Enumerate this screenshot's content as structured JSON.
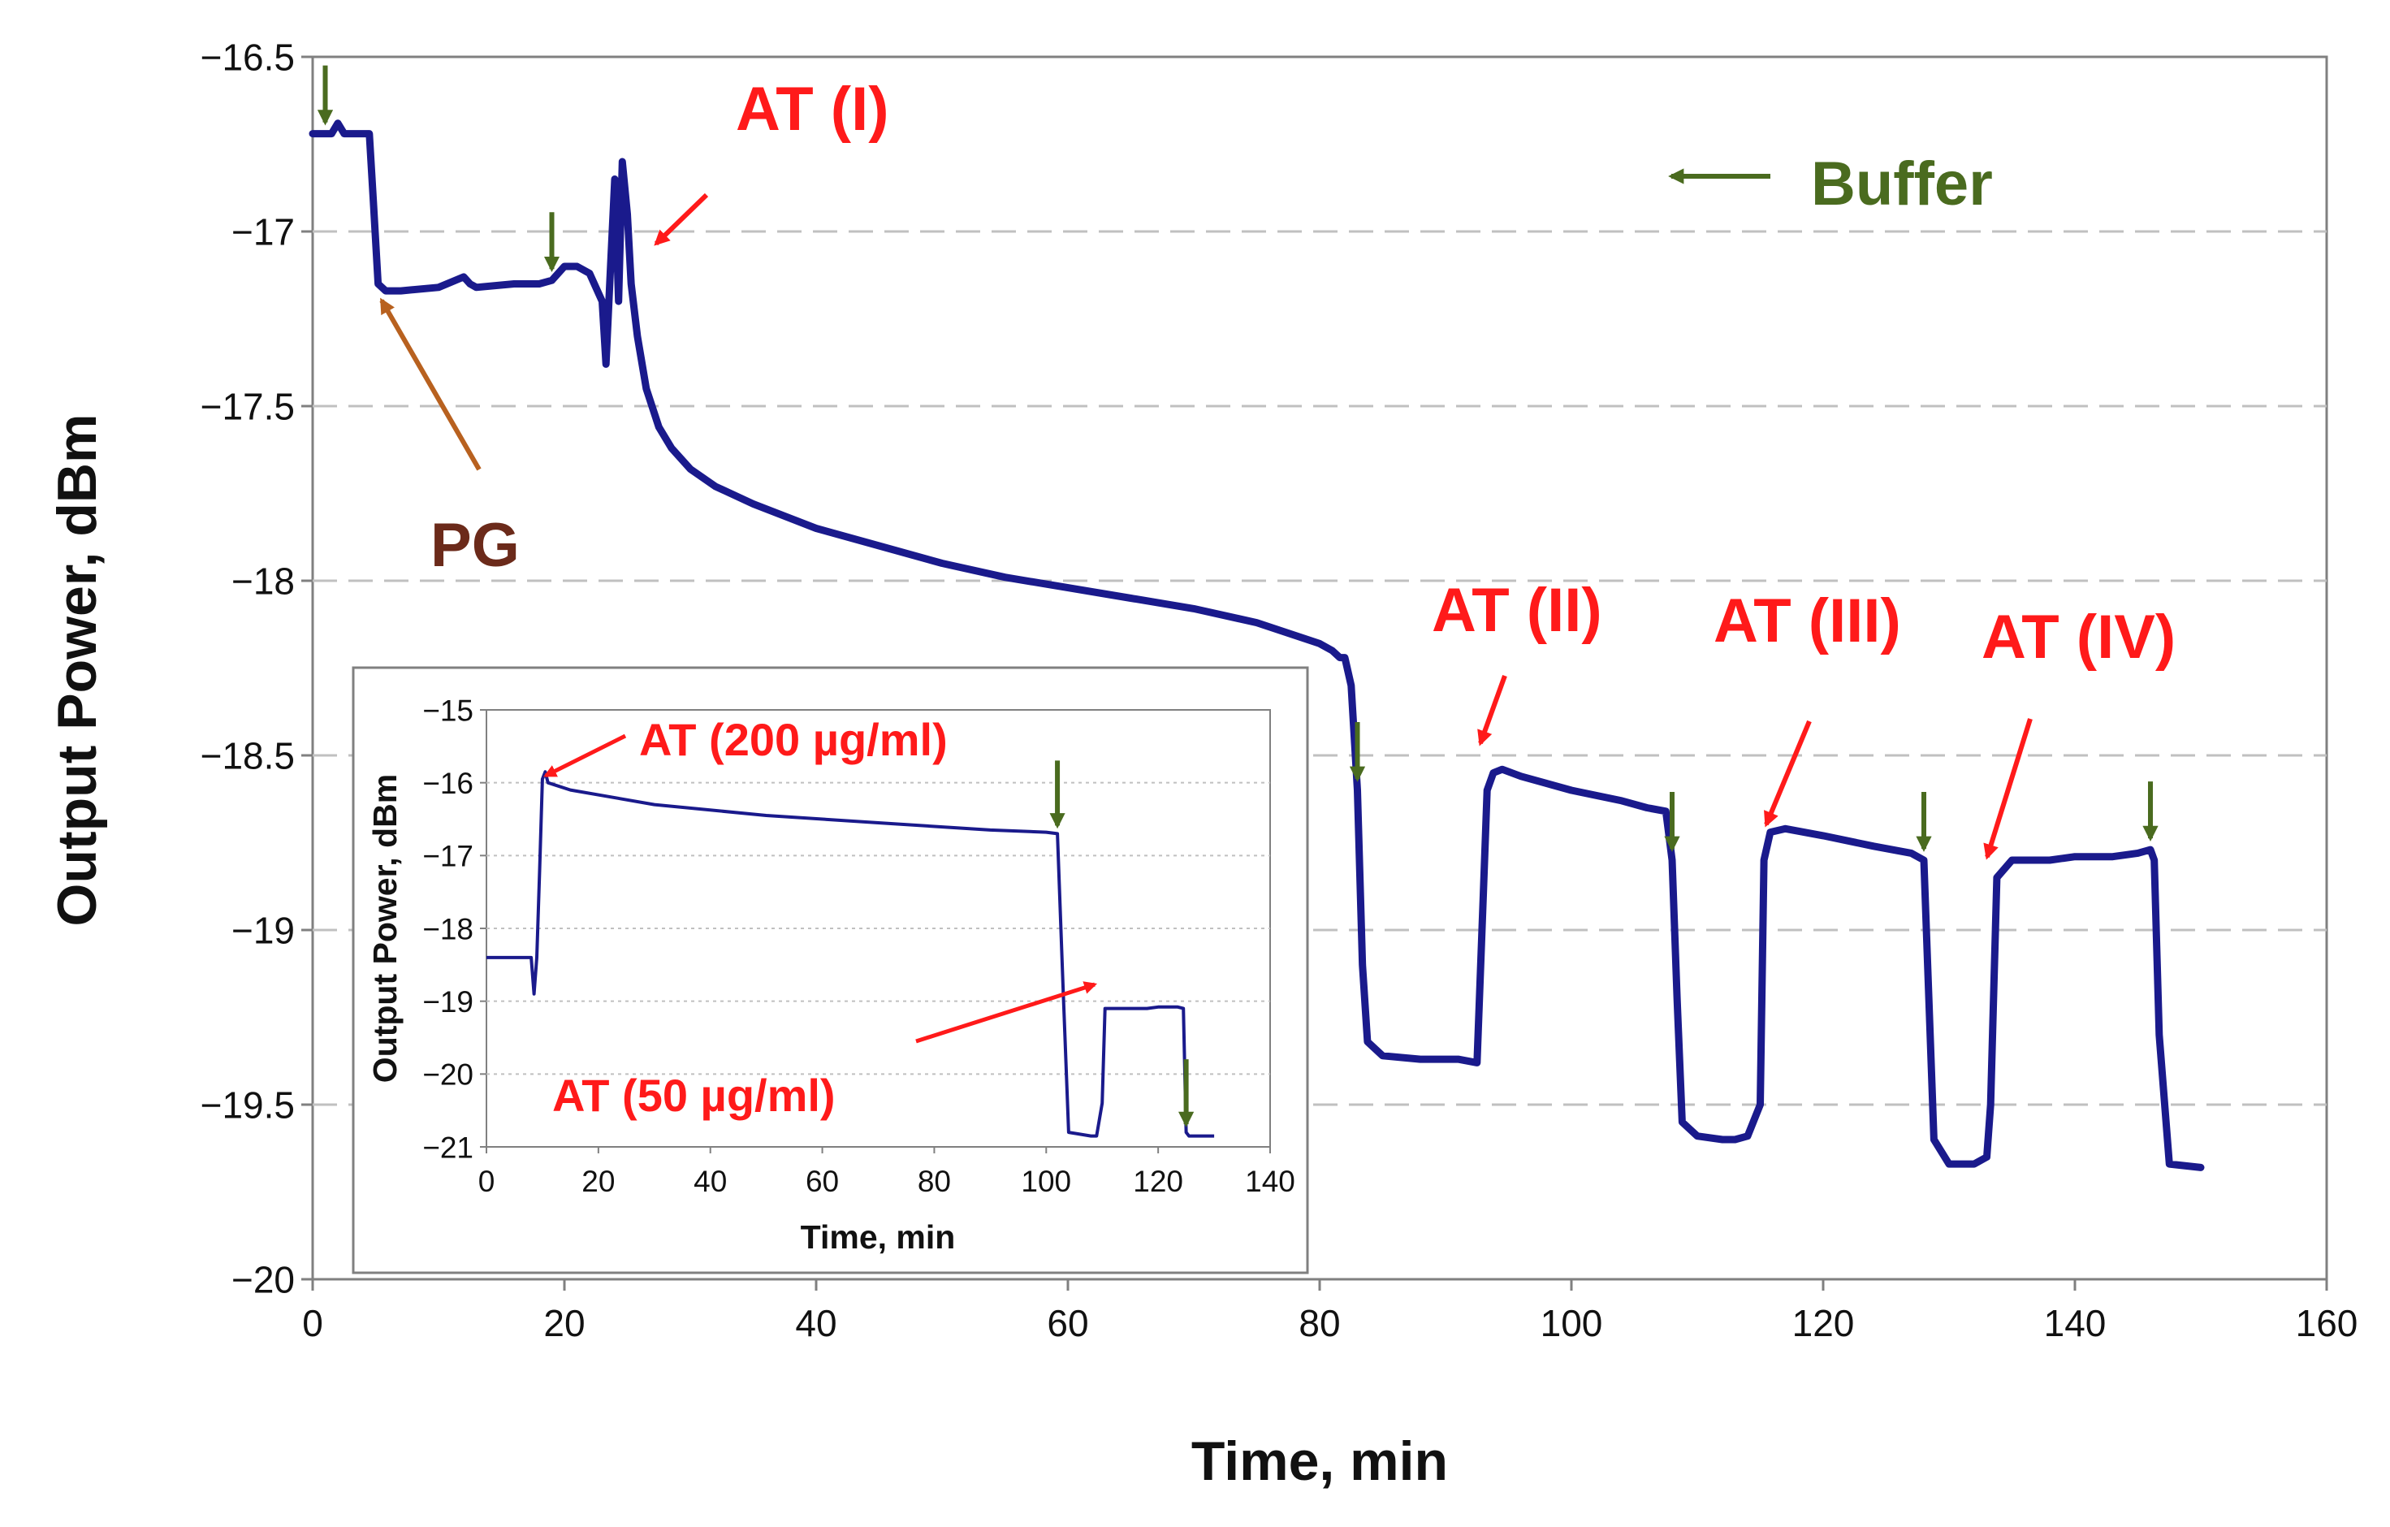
{
  "chart_data": [
    {
      "id": "main",
      "type": "line",
      "xlabel": "Time, min",
      "ylabel": "Output Power, dBm",
      "xlim": [
        0,
        160
      ],
      "ylim": [
        -20,
        -16.5
      ],
      "xticks": [
        0,
        20,
        40,
        60,
        80,
        100,
        120,
        140,
        160
      ],
      "yticks": [
        -16.5,
        -17,
        -17.5,
        -18,
        -18.5,
        -19,
        -19.5,
        -20
      ],
      "grid": "horizontal dashed",
      "line_color": "#1a1a8c",
      "series": [
        {
          "name": "Output Power",
          "x": [
            0,
            1.5,
            2,
            2.5,
            4.5,
            4.8,
            5.2,
            5.8,
            7,
            10,
            12,
            12.5,
            13,
            16,
            18,
            19,
            20,
            21,
            22,
            23,
            23.3,
            23.6,
            24,
            24.3,
            24.6,
            25,
            25.3,
            25.8,
            26.5,
            27.5,
            28.5,
            30,
            32,
            35,
            40,
            45,
            50,
            55,
            60,
            65,
            70,
            75,
            80,
            81,
            81.6,
            82,
            82.5,
            83,
            83.4,
            83.8,
            85,
            88,
            91,
            92.5,
            93,
            93.3,
            93.8,
            94.5,
            96,
            100,
            104,
            106,
            107.5,
            108,
            108.4,
            108.8,
            110,
            112,
            113,
            114,
            115,
            115.3,
            115.8,
            117,
            120,
            124,
            127,
            128,
            128.4,
            128.8,
            130,
            132,
            133,
            133.3,
            133.8,
            135,
            138,
            140,
            143,
            145,
            146,
            146.3,
            146.7,
            147.5,
            150
          ],
          "y": [
            -16.72,
            -16.72,
            -16.69,
            -16.72,
            -16.72,
            -16.9,
            -17.15,
            -17.17,
            -17.17,
            -17.16,
            -17.13,
            -17.15,
            -17.16,
            -17.15,
            -17.15,
            -17.14,
            -17.1,
            -17.1,
            -17.12,
            -17.2,
            -17.38,
            -17.15,
            -16.85,
            -17.2,
            -16.8,
            -16.95,
            -17.15,
            -17.3,
            -17.45,
            -17.56,
            -17.62,
            -17.68,
            -17.73,
            -17.78,
            -17.85,
            -17.9,
            -17.95,
            -17.99,
            -18.02,
            -18.05,
            -18.08,
            -18.12,
            -18.18,
            -18.2,
            -18.22,
            -18.22,
            -18.3,
            -18.6,
            -19.1,
            -19.32,
            -19.36,
            -19.37,
            -19.37,
            -19.38,
            -18.9,
            -18.6,
            -18.55,
            -18.54,
            -18.56,
            -18.6,
            -18.63,
            -18.65,
            -18.66,
            -18.8,
            -19.2,
            -19.55,
            -19.59,
            -19.6,
            -19.6,
            -19.59,
            -19.5,
            -18.8,
            -18.72,
            -18.71,
            -18.73,
            -18.76,
            -18.78,
            -18.8,
            -19.2,
            -19.6,
            -19.67,
            -19.67,
            -19.65,
            -19.5,
            -18.85,
            -18.8,
            -18.8,
            -18.79,
            -18.79,
            -18.78,
            -18.77,
            -18.8,
            -19.3,
            -19.67,
            -19.68
          ]
        }
      ],
      "annotations": [
        {
          "text": "AT (I)",
          "color": "#ff1a1a"
        },
        {
          "text": "Buffer",
          "color": "#4a6b1f"
        },
        {
          "text": "PG",
          "color": "#6b2a1a"
        },
        {
          "text": "AT (II)",
          "color": "#ff1a1a"
        },
        {
          "text": "AT (III)",
          "color": "#ff1a1a"
        },
        {
          "text": "AT (IV)",
          "color": "#ff1a1a"
        }
      ],
      "buffer_arrows_at_min": [
        1,
        19,
        83,
        108,
        128,
        146
      ]
    },
    {
      "id": "inset",
      "type": "line",
      "xlabel": "Time, min",
      "ylabel": "Output Power, dBm",
      "xlim": [
        0,
        140
      ],
      "ylim": [
        -21,
        -15
      ],
      "xticks": [
        0,
        20,
        40,
        60,
        80,
        100,
        120,
        140
      ],
      "yticks": [
        -15,
        -16,
        -17,
        -18,
        -19,
        -20,
        -21
      ],
      "grid": "horizontal dotted",
      "line_color": "#1a1a8c",
      "series": [
        {
          "name": "Output Power",
          "x": [
            0,
            5,
            7,
            8,
            8.5,
            9,
            9.5,
            10,
            10.5,
            11,
            15,
            30,
            50,
            70,
            90,
            100,
            101,
            102,
            103,
            104,
            108,
            109,
            110,
            110.5,
            112,
            118,
            120,
            123.5,
            124.5,
            125,
            125.5,
            130
          ],
          "y": [
            -18.4,
            -18.4,
            -18.4,
            -18.4,
            -18.9,
            -18.4,
            -17.2,
            -15.95,
            -15.85,
            -16.0,
            -16.1,
            -16.3,
            -16.45,
            -16.55,
            -16.65,
            -16.68,
            -16.69,
            -16.7,
            -18.8,
            -20.8,
            -20.85,
            -20.85,
            -20.4,
            -19.1,
            -19.1,
            -19.1,
            -19.08,
            -19.08,
            -19.1,
            -20.8,
            -20.85,
            -20.85
          ]
        }
      ],
      "annotations": [
        {
          "text": "AT (200 µg/ml)",
          "color": "#ff1a1a"
        },
        {
          "text": "AT (50 µg/ml)",
          "color": "#ff1a1a"
        }
      ],
      "buffer_arrows_at_min": [
        102,
        125
      ]
    }
  ]
}
